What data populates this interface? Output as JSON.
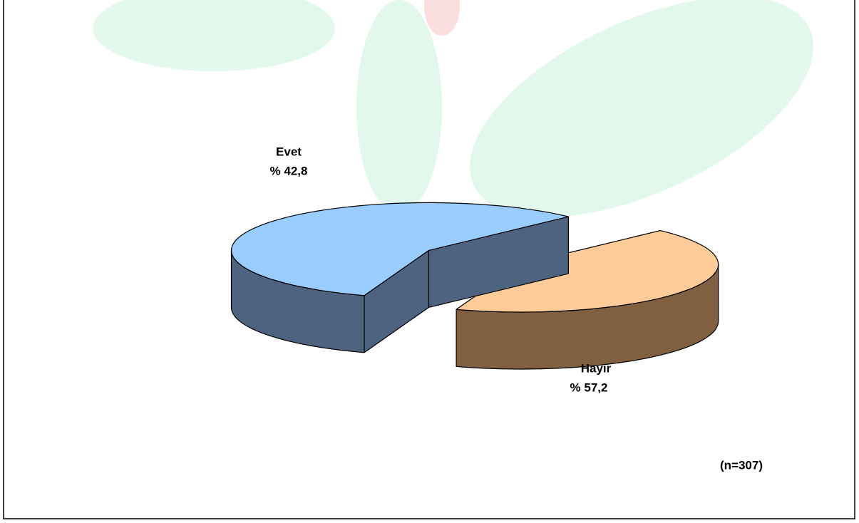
{
  "chart_data": {
    "type": "pie",
    "categories": [
      "Evet",
      "Hayır"
    ],
    "values": [
      42.8,
      57.2
    ],
    "value_labels": [
      "% 42,8",
      "% 57,2"
    ],
    "colors": [
      "#ffcc99",
      "#99ccff"
    ],
    "side_colors": [
      "#806040",
      "#4d6380"
    ],
    "annotation": "(n=307)"
  }
}
